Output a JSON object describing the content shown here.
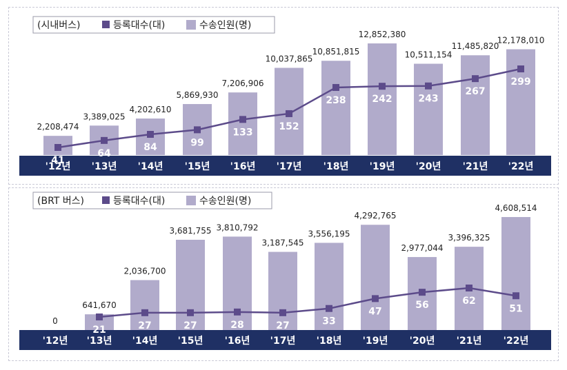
{
  "colors": {
    "bar": "#b1abcb",
    "line": "#5c4b8a",
    "band": "#1f3064",
    "band_text": "#ffffff",
    "value_text": "#222222",
    "inbar_text": "#ffffff"
  },
  "chart_data": [
    {
      "type": "bar+line",
      "legend": {
        "title": "(시내버스)",
        "line_name": "등록대수(대)",
        "bar_name": "수송인원(명)"
      },
      "categories": [
        "'12년",
        "'13년",
        "'14년",
        "'15년",
        "'16년",
        "'17년",
        "'18년",
        "'19년",
        "'20년",
        "'21년",
        "'22년"
      ],
      "series": [
        {
          "name": "수송인원(명)",
          "kind": "bar",
          "values": [
            2208474,
            3389025,
            4202610,
            5869930,
            7206906,
            10037865,
            10851815,
            12852380,
            10511154,
            11485820,
            12178010
          ],
          "labels": [
            "2,208,474",
            "3,389,025",
            "4,202,610",
            "5,869,930",
            "7,206,906",
            "10,037,865",
            "10,851,815",
            "12,852,380",
            "10,511,154",
            "11,485,820",
            "12,178,010"
          ]
        },
        {
          "name": "등록대수(대)",
          "kind": "line",
          "values": [
            41,
            64,
            84,
            99,
            133,
            152,
            238,
            242,
            243,
            267,
            299
          ],
          "labels": [
            "41",
            "64",
            "84",
            "99",
            "133",
            "152",
            "238",
            "242",
            "243",
            "267",
            "299"
          ]
        }
      ]
    },
    {
      "type": "bar+line",
      "legend": {
        "title": "(BRT 버스)",
        "line_name": "등록대수(대)",
        "bar_name": "수송인원(명)"
      },
      "categories": [
        "'12년",
        "'13년",
        "'14년",
        "'15년",
        "'16년",
        "'17년",
        "'18년",
        "'19년",
        "'20년",
        "'21년",
        "'22년"
      ],
      "series": [
        {
          "name": "수송인원(명)",
          "kind": "bar",
          "values": [
            0,
            641670,
            2036700,
            3681755,
            3810792,
            3187545,
            3556195,
            4292765,
            2977044,
            3396325,
            4608514
          ],
          "labels": [
            "0",
            "641,670",
            "2,036,700",
            "3,681,755",
            "3,810,792",
            "3,187,545",
            "3,556,195",
            "4,292,765",
            "2,977,044",
            "3,396,325",
            "4,608,514"
          ]
        },
        {
          "name": "등록대수(대)",
          "kind": "line",
          "values": [
            null,
            21,
            27,
            27,
            28,
            27,
            33,
            47,
            56,
            62,
            51
          ],
          "labels": [
            "",
            "21",
            "27",
            "27",
            "28",
            "27",
            "33",
            "47",
            "56",
            "62",
            "51"
          ]
        }
      ]
    }
  ]
}
